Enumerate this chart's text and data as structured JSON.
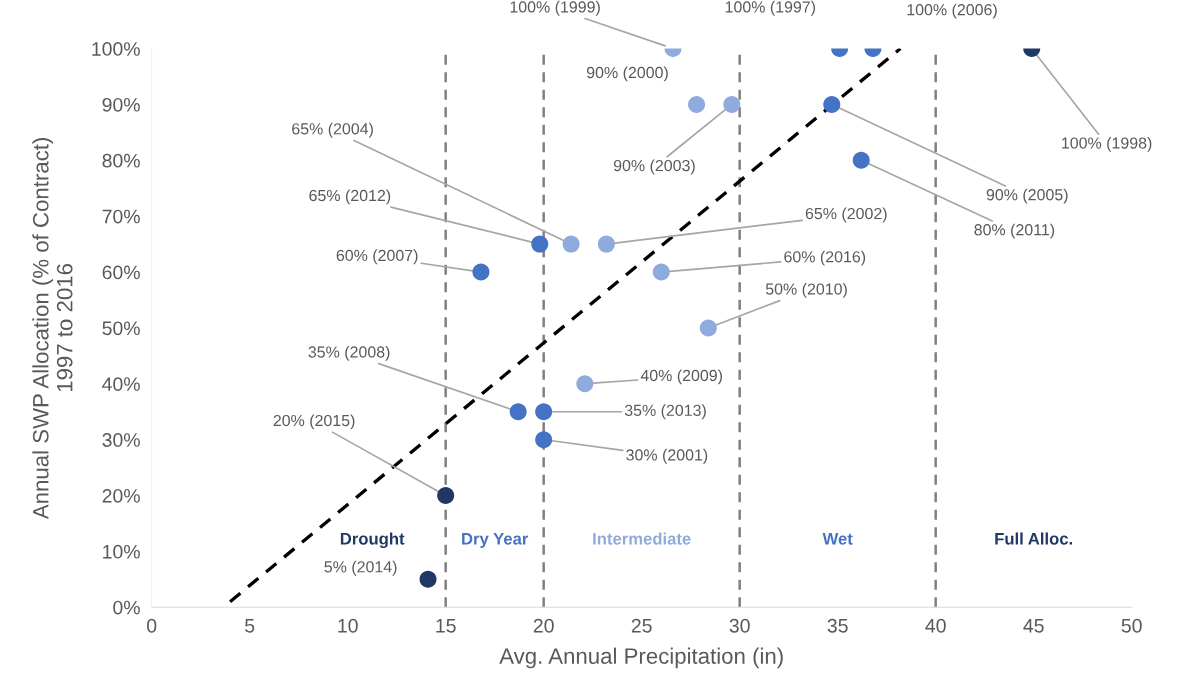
{
  "chart_data": {
    "type": "scatter",
    "xlabel": "Avg. Annual Precipitation (in)",
    "ylabel": "Annual SWP Allocation (% of Contract)\n1997 to 2016",
    "xlim": [
      0,
      50
    ],
    "xticks": [
      0,
      5,
      10,
      15,
      20,
      25,
      30,
      35,
      40,
      45,
      50
    ],
    "ylim": [
      0,
      100
    ],
    "yticks": [
      {
        "value": 0,
        "label": "0%"
      },
      {
        "value": 10,
        "label": "10%"
      },
      {
        "value": 20,
        "label": "20%"
      },
      {
        "value": 30,
        "label": "30%"
      },
      {
        "value": 40,
        "label": "40%"
      },
      {
        "value": 50,
        "label": "50%"
      },
      {
        "value": 60,
        "label": "60%"
      },
      {
        "value": 70,
        "label": "70%"
      },
      {
        "value": 80,
        "label": "80%"
      },
      {
        "value": 90,
        "label": "90%"
      },
      {
        "value": 100,
        "label": "100%"
      }
    ],
    "grid": false,
    "marker": "circle",
    "series": [
      {
        "color": "#203864",
        "x": [
          14.1,
          15.0
        ],
        "values": [
          5,
          20
        ],
        "value_labels": [
          "5% (2014)",
          "20% (2015)"
        ]
      },
      {
        "color": "#4472c4",
        "x": [
          16.8,
          18.7,
          20.0,
          20.0,
          19.8
        ],
        "values": [
          60,
          35,
          35,
          30,
          65
        ],
        "value_labels": [
          "60% (2007)",
          "35% (2008)",
          "35% (2013)",
          "30% (2001)",
          "65% (2012)"
        ]
      },
      {
        "color": "#8faadc",
        "x": [
          21.4,
          23.2,
          26.0,
          28.4,
          22.1,
          26.6,
          27.8,
          29.6
        ],
        "values": [
          65,
          65,
          60,
          50,
          40,
          100,
          90,
          90
        ],
        "value_labels": [
          "65% (2004)",
          "65% (2002)",
          "60% (2016)",
          "50% (2010)",
          "40% (2009)",
          "100% (1999)",
          "90% (2000)",
          "90% (2003)"
        ]
      },
      {
        "color": "#4472c4",
        "x": [
          35.1,
          36.8,
          34.7,
          36.2
        ],
        "values": [
          100,
          100,
          90,
          80
        ],
        "value_labels": [
          "100% (1997)",
          "100% (2006)",
          "90% (2005)",
          "80% (2011)"
        ]
      },
      {
        "color": "#203864",
        "x": [
          44.9
        ],
        "values": [
          100
        ],
        "value_labels": [
          "100% (1998)"
        ]
      },
      {
        "type": "line",
        "color": "#000000",
        "line_style": "dashed",
        "marker": "none",
        "x": [
          4.0,
          38.2
        ],
        "values": [
          1,
          100
        ]
      }
    ],
    "annotations": [
      "Drought",
      "Dry Year",
      "Intermediate",
      "Wet",
      "Full Alloc."
    ],
    "ref_lines": [
      {
        "axis": "x",
        "value": 15,
        "color": "#808080",
        "line_style": "dashed"
      },
      {
        "axis": "x",
        "value": 20,
        "color": "#808080",
        "line_style": "dashed"
      },
      {
        "axis": "x",
        "value": 30,
        "color": "#808080",
        "line_style": "dashed"
      },
      {
        "axis": "x",
        "value": 40,
        "color": "#808080",
        "line_style": "dashed"
      }
    ]
  }
}
